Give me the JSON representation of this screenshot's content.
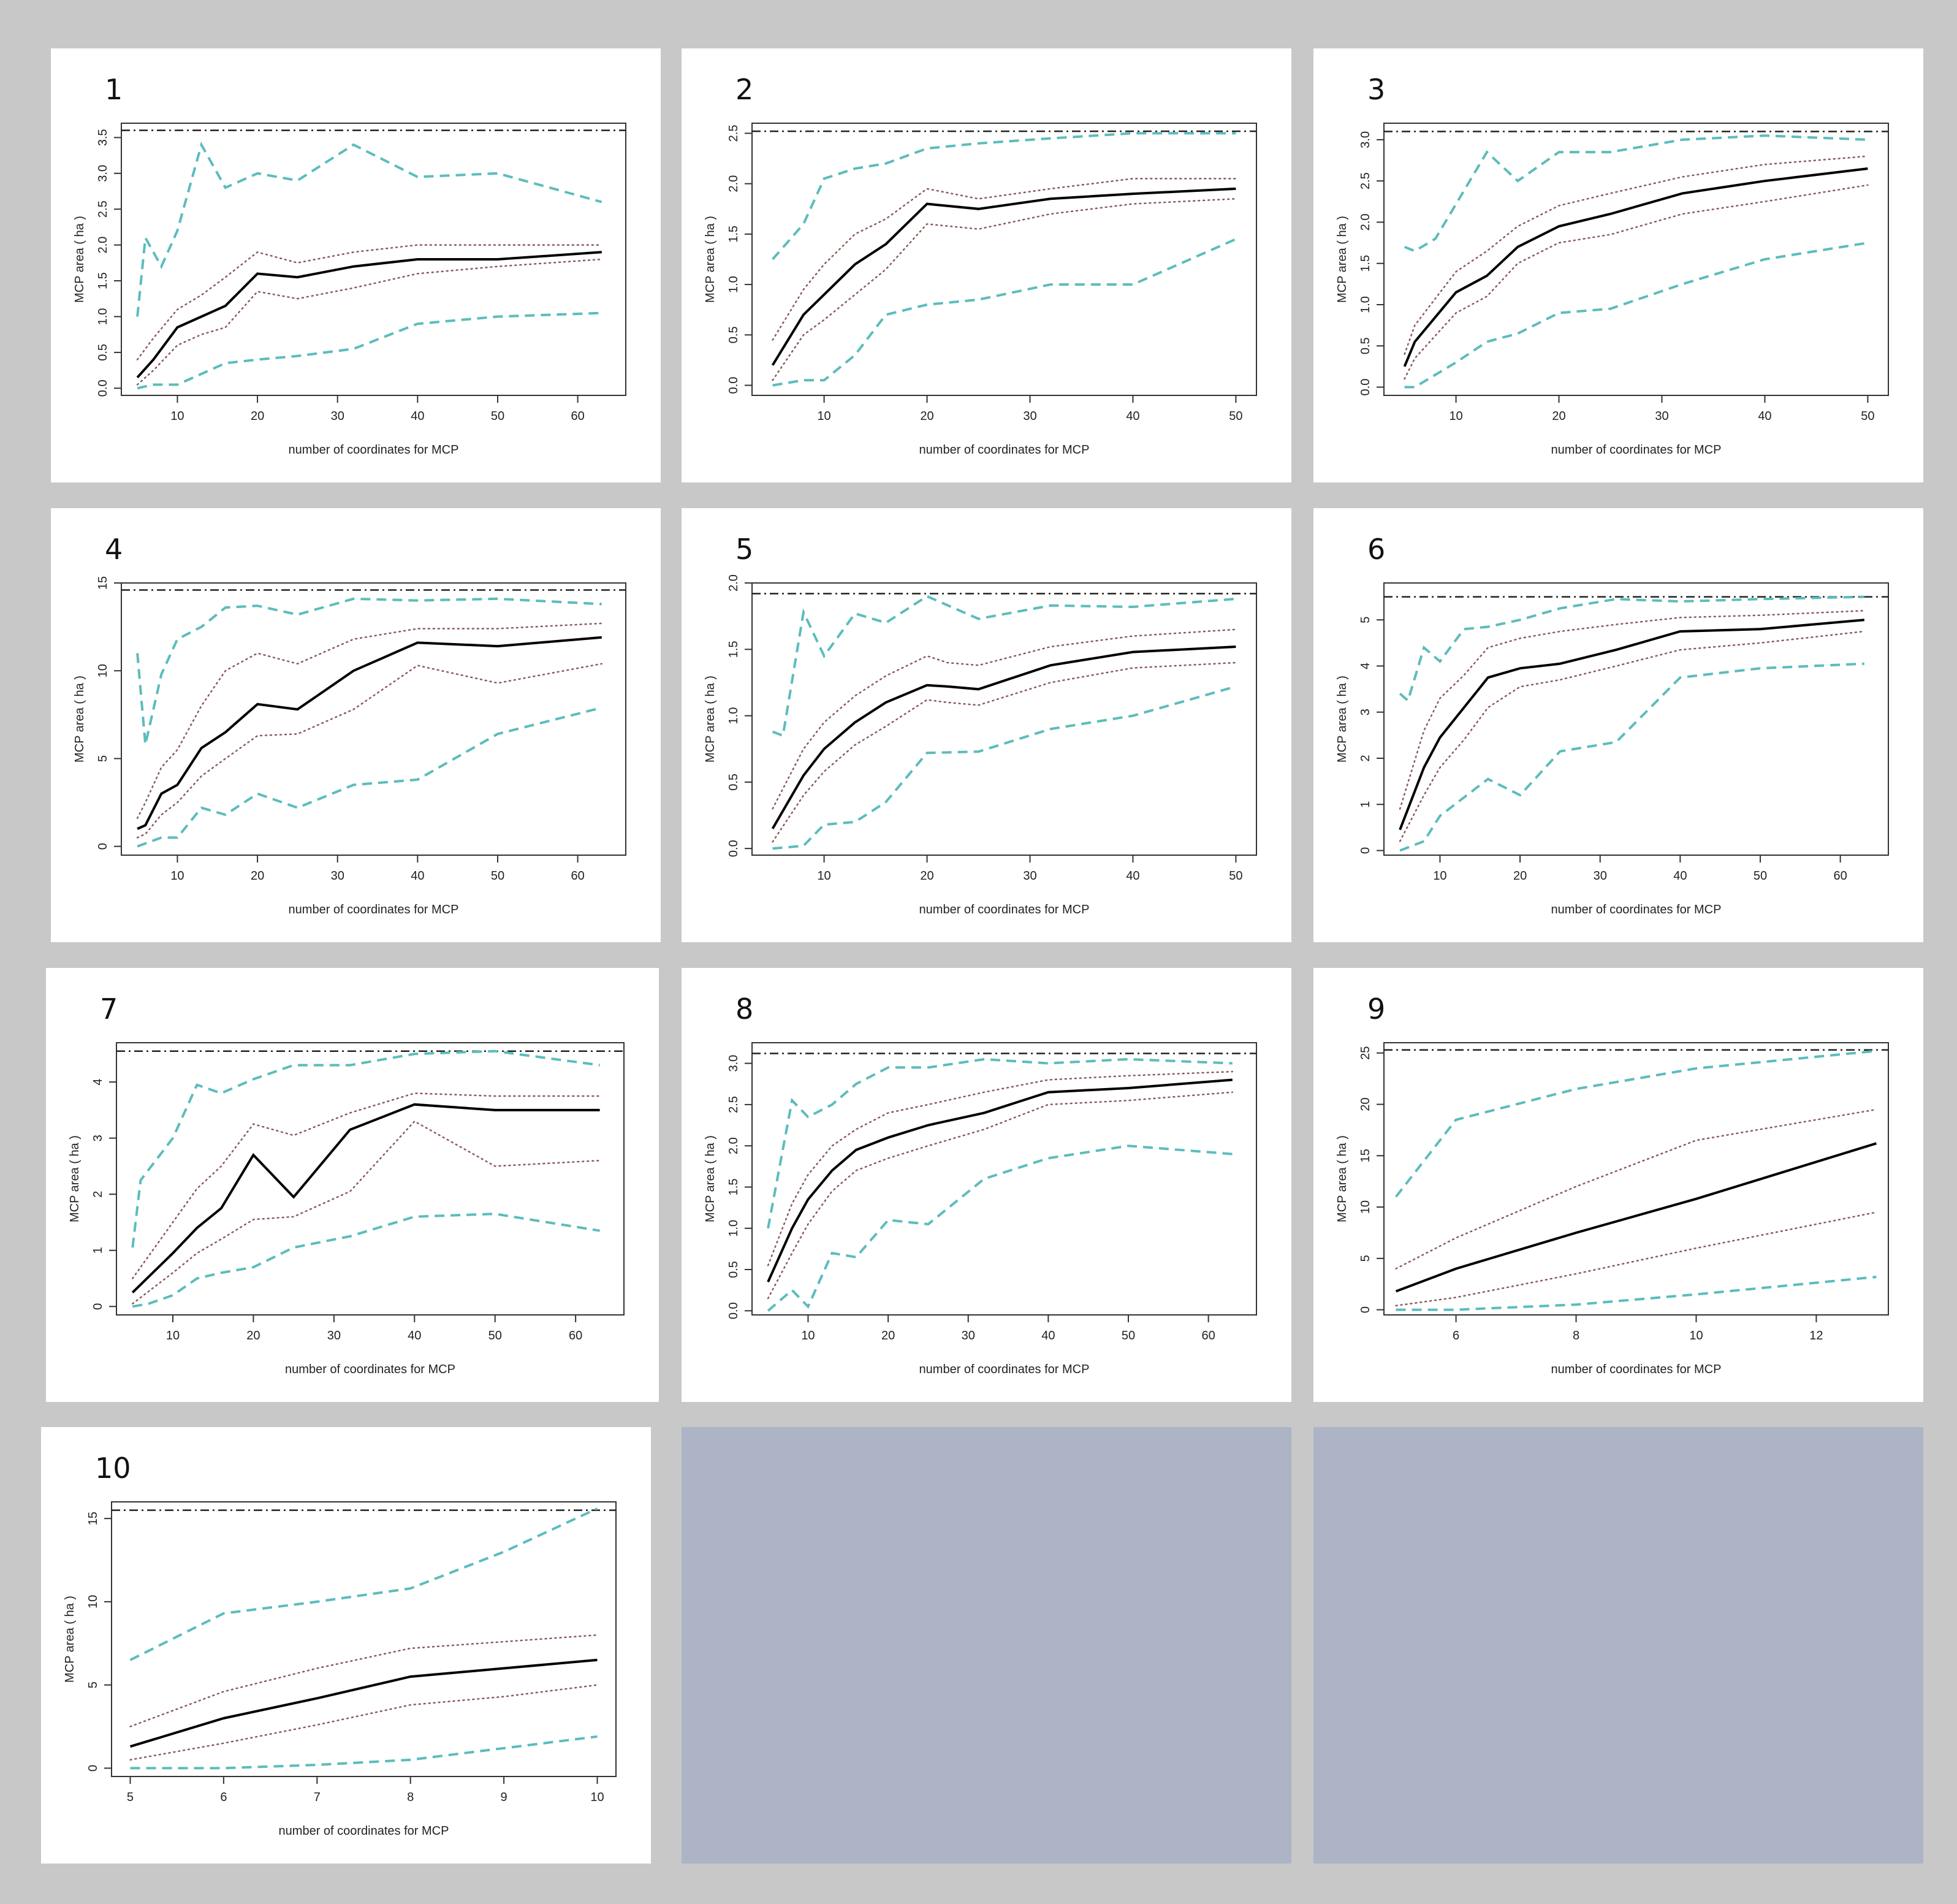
{
  "colors": {
    "mean": "#000000",
    "ci_dotted": "#8a5a5a",
    "range_dashed": "#5cbcbc",
    "total": "#222222"
  },
  "chart_data": [
    {
      "type": "line",
      "panel": "1",
      "xlabel": "number of coordinates for MCP",
      "ylabel": "MCP area ( ha )",
      "xlim": [
        3,
        66
      ],
      "ylim": [
        -0.1,
        3.7
      ],
      "xticks": [
        10,
        20,
        30,
        40,
        50,
        60
      ],
      "yticks": [
        0.0,
        0.5,
        1.0,
        1.5,
        2.0,
        2.5,
        3.0,
        3.5
      ],
      "ytick_labels": [
        "0.0",
        "0.5",
        "1.0",
        "1.5",
        "2.0",
        "2.5",
        "3.0",
        "3.5"
      ],
      "total": 3.6,
      "x": [
        5,
        7,
        10,
        13,
        16,
        20,
        25,
        32,
        40,
        50,
        63
      ],
      "mean": [
        0.15,
        0.4,
        0.85,
        1.0,
        1.15,
        1.6,
        1.55,
        1.7,
        1.8,
        1.8,
        1.9
      ],
      "ci_upper": [
        0.4,
        0.7,
        1.1,
        1.3,
        1.55,
        1.9,
        1.75,
        1.9,
        2.0,
        2.0,
        2.0
      ],
      "ci_lower": [
        0.05,
        0.25,
        0.6,
        0.75,
        0.85,
        1.35,
        1.25,
        1.4,
        1.6,
        1.7,
        1.8
      ],
      "max": [
        1.0,
        2.1,
        1.7,
        2.2,
        3.4,
        2.8,
        3.0,
        2.9,
        3.4,
        2.95,
        3.0,
        2.6
      ],
      "max_x": [
        5,
        6,
        8,
        10,
        13,
        16,
        20,
        25,
        32,
        40,
        50,
        63
      ],
      "min": [
        0.0,
        0.05,
        0.05,
        0.2,
        0.35,
        0.4,
        0.45,
        0.55,
        0.9,
        1.0,
        1.05
      ],
      "min_x": [
        5,
        7,
        10,
        13,
        16,
        20,
        25,
        32,
        40,
        50,
        63
      ]
    },
    {
      "type": "line",
      "panel": "2",
      "xlabel": "number of coordinates for MCP",
      "ylabel": "MCP area ( ha )",
      "xlim": [
        3,
        52
      ],
      "ylim": [
        -0.1,
        2.6
      ],
      "xticks": [
        10,
        20,
        30,
        40,
        50
      ],
      "yticks": [
        0.0,
        0.5,
        1.0,
        1.5,
        2.0,
        2.5
      ],
      "ytick_labels": [
        "0.0",
        "0.5",
        "1.0",
        "1.5",
        "2.0",
        "2.5"
      ],
      "total": 2.52,
      "x": [
        5,
        8,
        10,
        13,
        16,
        20,
        25,
        32,
        40,
        50
      ],
      "mean": [
        0.2,
        0.7,
        0.9,
        1.2,
        1.4,
        1.8,
        1.75,
        1.85,
        1.9,
        1.95
      ],
      "ci_upper": [
        0.45,
        0.95,
        1.2,
        1.5,
        1.65,
        1.95,
        1.85,
        1.95,
        2.05,
        2.05
      ],
      "ci_lower": [
        0.05,
        0.5,
        0.65,
        0.9,
        1.15,
        1.6,
        1.55,
        1.7,
        1.8,
        1.85
      ],
      "max": [
        1.25,
        1.6,
        2.05,
        2.15,
        2.2,
        2.35,
        2.4,
        2.45,
        2.5,
        2.5
      ],
      "max_x": [
        5,
        8,
        10,
        13,
        16,
        20,
        25,
        32,
        40,
        50
      ],
      "min": [
        0.0,
        0.05,
        0.05,
        0.3,
        0.7,
        0.8,
        0.85,
        1.0,
        1.0,
        1.45
      ],
      "min_x": [
        5,
        8,
        10,
        13,
        16,
        20,
        25,
        32,
        40,
        50
      ]
    },
    {
      "type": "line",
      "panel": "3",
      "xlabel": "number of coordinates for MCP",
      "ylabel": "MCP area ( ha )",
      "xlim": [
        3,
        52
      ],
      "ylim": [
        -0.1,
        3.2
      ],
      "xticks": [
        10,
        20,
        30,
        40,
        50
      ],
      "yticks": [
        0.0,
        0.5,
        1.0,
        1.5,
        2.0,
        2.5,
        3.0
      ],
      "ytick_labels": [
        "0.0",
        "0.5",
        "1.0",
        "1.5",
        "2.0",
        "2.5",
        "3.0"
      ],
      "total": 3.1,
      "x": [
        5,
        6,
        10,
        13,
        16,
        20,
        25,
        32,
        40,
        50
      ],
      "mean": [
        0.25,
        0.55,
        1.15,
        1.35,
        1.7,
        1.95,
        2.1,
        2.35,
        2.5,
        2.65
      ],
      "ci_upper": [
        0.4,
        0.75,
        1.4,
        1.65,
        1.95,
        2.2,
        2.35,
        2.55,
        2.7,
        2.8
      ],
      "ci_lower": [
        0.1,
        0.35,
        0.9,
        1.1,
        1.5,
        1.75,
        1.85,
        2.1,
        2.25,
        2.45
      ],
      "max": [
        1.7,
        1.65,
        1.8,
        2.85,
        2.5,
        2.85,
        2.85,
        3.0,
        3.05,
        3.0
      ],
      "max_x": [
        5,
        6,
        8,
        13,
        16,
        20,
        25,
        32,
        40,
        50
      ],
      "min": [
        0.0,
        0.0,
        0.3,
        0.55,
        0.65,
        0.9,
        0.95,
        1.25,
        1.55,
        1.75
      ],
      "min_x": [
        5,
        6,
        10,
        13,
        16,
        20,
        25,
        32,
        40,
        50
      ]
    },
    {
      "type": "line",
      "panel": "4",
      "xlabel": "number of coordinates for MCP",
      "ylabel": "MCP area ( ha )",
      "xlim": [
        3,
        66
      ],
      "ylim": [
        -0.5,
        15
      ],
      "xticks": [
        10,
        20,
        30,
        40,
        50,
        60
      ],
      "yticks": [
        0,
        5,
        10,
        15
      ],
      "ytick_labels": [
        "0",
        "5",
        "10",
        "15"
      ],
      "total": 14.6,
      "x": [
        5,
        6,
        8,
        10,
        13,
        16,
        20,
        25,
        32,
        40,
        50,
        63
      ],
      "mean": [
        1.0,
        1.2,
        3.0,
        3.5,
        5.6,
        6.5,
        8.1,
        7.8,
        10.0,
        11.6,
        11.4,
        11.9
      ],
      "ci_upper": [
        1.6,
        2.5,
        4.5,
        5.5,
        8.0,
        10.0,
        11.0,
        10.4,
        11.8,
        12.4,
        12.4,
        12.7
      ],
      "ci_lower": [
        0.5,
        0.7,
        1.8,
        2.5,
        4.0,
        5.0,
        6.3,
        6.4,
        7.8,
        10.3,
        9.3,
        10.4
      ],
      "max": [
        11.0,
        5.8,
        9.8,
        11.8,
        12.5,
        13.6,
        13.7,
        13.2,
        14.1,
        14.0,
        14.1,
        13.8
      ],
      "max_x": [
        5,
        6,
        8,
        10,
        13,
        16,
        20,
        25,
        32,
        40,
        50,
        63
      ],
      "min": [
        0.0,
        0.5,
        0.5,
        2.2,
        1.8,
        3.0,
        2.2,
        3.5,
        3.8,
        6.4,
        7.9
      ],
      "min_x": [
        5,
        8,
        10,
        13,
        16,
        20,
        25,
        32,
        40,
        50,
        63
      ]
    },
    {
      "type": "line",
      "panel": "5",
      "xlabel": "number of coordinates for MCP",
      "ylabel": "MCP area ( ha )",
      "xlim": [
        3,
        52
      ],
      "ylim": [
        -0.05,
        2.0
      ],
      "xticks": [
        10,
        20,
        30,
        40,
        50
      ],
      "yticks": [
        0.0,
        0.5,
        1.0,
        1.5,
        2.0
      ],
      "ytick_labels": [
        "0.0",
        "0.5",
        "1.0",
        "1.5",
        "2.0"
      ],
      "total": 1.92,
      "x": [
        5,
        8,
        10,
        13,
        16,
        20,
        22,
        25,
        32,
        40,
        50
      ],
      "mean": [
        0.15,
        0.55,
        0.75,
        0.95,
        1.1,
        1.23,
        1.22,
        1.2,
        1.38,
        1.48,
        1.52
      ],
      "ci_upper": [
        0.3,
        0.75,
        0.95,
        1.15,
        1.3,
        1.45,
        1.4,
        1.38,
        1.52,
        1.6,
        1.65
      ],
      "ci_lower": [
        0.05,
        0.4,
        0.58,
        0.78,
        0.92,
        1.12,
        1.1,
        1.08,
        1.25,
        1.36,
        1.4
      ],
      "max": [
        0.88,
        0.85,
        1.78,
        1.45,
        1.77,
        1.7,
        1.9,
        1.73,
        1.83,
        1.82,
        1.88
      ],
      "max_x": [
        5,
        6,
        8,
        10,
        13,
        16,
        20,
        25,
        32,
        40,
        50
      ],
      "min": [
        0.0,
        0.02,
        0.18,
        0.2,
        0.35,
        0.72,
        0.73,
        0.9,
        1.0,
        1.22
      ],
      "min_x": [
        5,
        8,
        10,
        13,
        16,
        20,
        25,
        32,
        40,
        50
      ]
    },
    {
      "type": "line",
      "panel": "6",
      "xlabel": "number of coordinates for MCP",
      "ylabel": "MCP area ( ha )",
      "xlim": [
        3,
        66
      ],
      "ylim": [
        -0.1,
        5.8
      ],
      "xticks": [
        10,
        20,
        30,
        40,
        50,
        60
      ],
      "yticks": [
        0,
        1,
        2,
        3,
        4,
        5
      ],
      "ytick_labels": [
        "0",
        "1",
        "2",
        "3",
        "4",
        "5"
      ],
      "total": 5.5,
      "x": [
        5,
        8,
        10,
        13,
        16,
        20,
        25,
        32,
        40,
        50,
        63
      ],
      "mean": [
        0.45,
        1.8,
        2.45,
        3.1,
        3.75,
        3.95,
        4.05,
        4.35,
        4.75,
        4.8,
        5.0
      ],
      "ci_upper": [
        0.9,
        2.6,
        3.3,
        3.8,
        4.4,
        4.6,
        4.75,
        4.9,
        5.05,
        5.1,
        5.2
      ],
      "ci_lower": [
        0.2,
        1.2,
        1.8,
        2.4,
        3.1,
        3.55,
        3.7,
        4.0,
        4.35,
        4.5,
        4.75
      ],
      "max": [
        3.4,
        3.25,
        4.4,
        4.1,
        4.8,
        4.85,
        5.0,
        5.25,
        5.45,
        5.4,
        5.45,
        5.5
      ],
      "max_x": [
        5,
        6,
        8,
        10,
        13,
        16,
        20,
        25,
        32,
        40,
        50,
        63
      ],
      "min": [
        0.0,
        0.2,
        0.75,
        1.55,
        1.2,
        2.15,
        2.35,
        3.75,
        3.95,
        4.05
      ],
      "min_x": [
        5,
        8,
        10,
        16,
        20,
        25,
        32,
        40,
        50,
        63
      ]
    },
    {
      "type": "line",
      "panel": "7",
      "xlabel": "number of coordinates for MCP",
      "ylabel": "MCP area ( ha )",
      "xlim": [
        3,
        66
      ],
      "ylim": [
        -0.15,
        4.7
      ],
      "xticks": [
        10,
        20,
        30,
        40,
        50,
        60
      ],
      "yticks": [
        0,
        1,
        2,
        3,
        4
      ],
      "ytick_labels": [
        "0",
        "1",
        "2",
        "3",
        "4"
      ],
      "total": 4.55,
      "x": [
        5,
        10,
        13,
        16,
        20,
        25,
        32,
        40,
        50,
        63
      ],
      "mean": [
        0.25,
        0.95,
        1.4,
        1.75,
        2.7,
        1.95,
        3.15,
        3.6,
        3.5,
        3.5
      ],
      "ci_upper": [
        0.5,
        1.5,
        2.1,
        2.5,
        3.25,
        3.05,
        3.45,
        3.8,
        3.75,
        3.75
      ],
      "ci_lower": [
        0.05,
        0.6,
        0.95,
        1.2,
        1.55,
        1.6,
        2.05,
        3.3,
        2.5,
        2.6
      ],
      "max": [
        1.05,
        2.25,
        3.0,
        3.95,
        3.8,
        4.05,
        4.3,
        4.3,
        4.5,
        4.55,
        4.3
      ],
      "max_x": [
        5,
        6,
        10,
        13,
        16,
        20,
        25,
        32,
        40,
        50,
        63
      ],
      "min": [
        0.0,
        0.05,
        0.2,
        0.5,
        0.6,
        0.7,
        1.05,
        1.25,
        1.6,
        1.65,
        1.35
      ],
      "min_x": [
        5,
        7,
        10,
        13,
        16,
        20,
        25,
        32,
        40,
        50,
        63
      ]
    },
    {
      "type": "line",
      "panel": "8",
      "xlabel": "number of coordinates for MCP",
      "ylabel": "MCP area ( ha )",
      "xlim": [
        3,
        66
      ],
      "ylim": [
        -0.05,
        3.25
      ],
      "xticks": [
        10,
        20,
        30,
        40,
        50,
        60
      ],
      "yticks": [
        0.0,
        0.5,
        1.0,
        1.5,
        2.0,
        2.5,
        3.0
      ],
      "ytick_labels": [
        "0.0",
        "0.5",
        "1.0",
        "1.5",
        "2.0",
        "2.5",
        "3.0"
      ],
      "total": 3.12,
      "x": [
        5,
        8,
        10,
        13,
        16,
        20,
        25,
        32,
        40,
        50,
        63
      ],
      "mean": [
        0.35,
        1.0,
        1.35,
        1.7,
        1.95,
        2.1,
        2.25,
        2.4,
        2.65,
        2.7,
        2.8
      ],
      "ci_upper": [
        0.55,
        1.3,
        1.65,
        2.0,
        2.2,
        2.4,
        2.5,
        2.65,
        2.8,
        2.85,
        2.9
      ],
      "ci_lower": [
        0.15,
        0.7,
        1.05,
        1.45,
        1.7,
        1.85,
        2.0,
        2.2,
        2.5,
        2.55,
        2.65
      ],
      "max": [
        1.0,
        2.55,
        2.35,
        2.5,
        2.75,
        2.95,
        2.95,
        3.05,
        3.0,
        3.05,
        3.0
      ],
      "max_x": [
        5,
        8,
        10,
        13,
        16,
        20,
        25,
        32,
        40,
        50,
        63
      ],
      "min": [
        0.0,
        0.25,
        0.05,
        0.7,
        0.65,
        1.1,
        1.05,
        1.6,
        1.85,
        2.0,
        1.9
      ],
      "min_x": [
        5,
        8,
        10,
        13,
        16,
        20,
        25,
        32,
        40,
        50,
        63
      ]
    },
    {
      "type": "line",
      "panel": "9",
      "xlabel": "number of coordinates for MCP",
      "ylabel": "MCP area ( ha )",
      "xlim": [
        4.8,
        13.2
      ],
      "ylim": [
        -0.5,
        26
      ],
      "xticks": [
        6,
        8,
        10,
        12
      ],
      "yticks": [
        0,
        5,
        10,
        15,
        20,
        25
      ],
      "ytick_labels": [
        "0",
        "5",
        "10",
        "15",
        "20",
        "25"
      ],
      "total": 25.3,
      "x": [
        5,
        6,
        8,
        10,
        13
      ],
      "mean": [
        1.8,
        4.0,
        7.5,
        10.8,
        16.2
      ],
      "ci_upper": [
        4.0,
        7.0,
        12.0,
        16.5,
        19.5
      ],
      "ci_lower": [
        0.4,
        1.2,
        3.5,
        6.0,
        9.5
      ],
      "max": [
        11.0,
        18.5,
        21.5,
        23.5,
        25.2
      ],
      "max_x": [
        5,
        6,
        8,
        10,
        13
      ],
      "min": [
        0.0,
        0.0,
        0.5,
        1.5,
        3.2
      ],
      "min_x": [
        5,
        6,
        8,
        10,
        13
      ]
    },
    {
      "type": "line",
      "panel": "10",
      "xlabel": "number of coordinates for MCP",
      "ylabel": "MCP area ( ha )",
      "xlim": [
        4.8,
        10.2
      ],
      "ylim": [
        -0.5,
        16
      ],
      "xticks": [
        5,
        6,
        7,
        8,
        9,
        10
      ],
      "yticks": [
        0,
        5,
        10,
        15
      ],
      "ytick_labels": [
        "0",
        "5",
        "10",
        "15"
      ],
      "total": 15.5,
      "x": [
        5,
        6,
        7,
        8,
        9,
        10
      ],
      "mean": [
        1.3,
        3.0,
        4.2,
        5.5,
        6.0,
        6.5
      ],
      "ci_upper": [
        2.5,
        4.6,
        6.0,
        7.2,
        7.6,
        8.0
      ],
      "ci_lower": [
        0.5,
        1.5,
        2.6,
        3.8,
        4.3,
        5.0
      ],
      "max": [
        6.5,
        9.3,
        10.0,
        10.8,
        13.0,
        15.6
      ],
      "max_x": [
        5,
        6,
        7,
        8,
        9,
        10
      ],
      "min": [
        0.0,
        0.0,
        0.2,
        0.5,
        1.2,
        1.9
      ],
      "min_x": [
        5,
        6,
        7,
        8,
        9,
        10
      ]
    }
  ]
}
